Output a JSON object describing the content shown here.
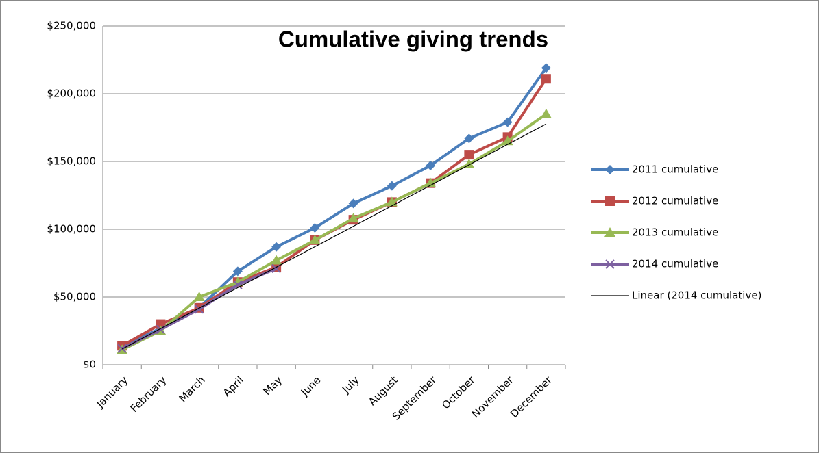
{
  "chart_data": {
    "type": "line",
    "title": "Cumulative giving trends",
    "categories": [
      "January",
      "February",
      "March",
      "April",
      "May",
      "June",
      "July",
      "August",
      "September",
      "October",
      "November",
      "December"
    ],
    "series": [
      {
        "name": "2011 cumulative",
        "color": "#4a7ebb",
        "marker": "diamond",
        "values": [
          13000,
          27000,
          42000,
          69000,
          87000,
          101000,
          119000,
          132000,
          147000,
          167000,
          179000,
          219000
        ]
      },
      {
        "name": "2012 cumulative",
        "color": "#be4b48",
        "marker": "square",
        "values": [
          14000,
          30000,
          42000,
          61000,
          72000,
          92000,
          107000,
          120000,
          134000,
          155000,
          168000,
          211000
        ]
      },
      {
        "name": "2013 cumulative",
        "color": "#98b954",
        "marker": "triangle",
        "values": [
          11000,
          25000,
          50000,
          61000,
          77000,
          92000,
          108000,
          120000,
          134000,
          148000,
          165000,
          185000
        ]
      },
      {
        "name": "2014 cumulative",
        "color": "#7d60a0",
        "marker": "x",
        "values": [
          12000,
          26000,
          41000,
          59000,
          71000,
          null,
          null,
          null,
          null,
          null,
          null,
          null
        ]
      }
    ],
    "trendline": {
      "name": "Linear (2014 cumulative)",
      "color": "#000000",
      "of_series": 3
    },
    "ylim": [
      0,
      250000
    ],
    "yticks": [
      {
        "value": 0,
        "label": "$0"
      },
      {
        "value": 50000,
        "label": "$50,000"
      },
      {
        "value": 100000,
        "label": "$100,000"
      },
      {
        "value": 150000,
        "label": "$150,000"
      },
      {
        "value": 200000,
        "label": "$200,000"
      },
      {
        "value": 250000,
        "label": "$250,000"
      }
    ],
    "grid": true,
    "legend": "right"
  }
}
